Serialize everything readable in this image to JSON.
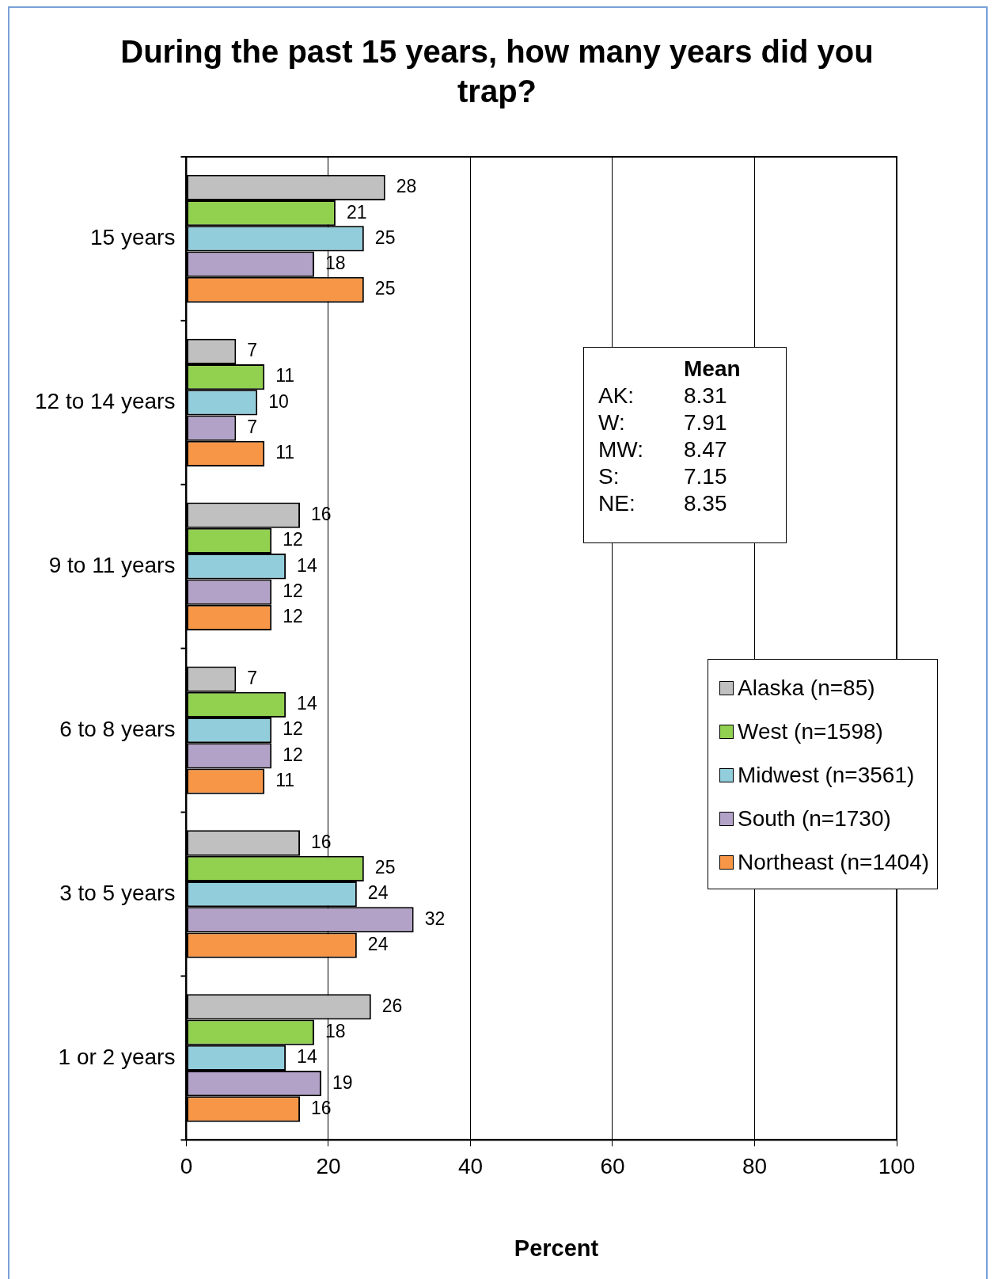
{
  "chart_data": {
    "type": "bar",
    "orientation": "horizontal",
    "title": "During the past 15 years, how many years did you trap?",
    "xlabel": "Percent",
    "categories": [
      "15 years",
      "12 to 14 years",
      "9 to 11 years",
      "6 to 8 years",
      "3 to 5 years",
      "1 or 2 years"
    ],
    "series": [
      {
        "name": "Alaska (n=85)",
        "color": "#c0c0c0",
        "values": [
          28,
          7,
          16,
          7,
          16,
          26
        ]
      },
      {
        "name": "West (n=1598)",
        "color": "#92d050",
        "values": [
          21,
          11,
          12,
          14,
          25,
          18
        ]
      },
      {
        "name": "Midwest (n=3561)",
        "color": "#92cddc",
        "values": [
          25,
          10,
          14,
          12,
          24,
          14
        ]
      },
      {
        "name": "South (n=1730)",
        "color": "#b3a2c7",
        "values": [
          18,
          7,
          12,
          12,
          32,
          19
        ]
      },
      {
        "name": "Northeast (n=1404)",
        "color": "#f79646",
        "values": [
          25,
          11,
          12,
          11,
          24,
          16
        ]
      }
    ],
    "xlim": [
      0,
      100
    ],
    "xticks": [
      0,
      20,
      40,
      60,
      80,
      100
    ],
    "grid": "x",
    "legend": "right",
    "data_labels": true,
    "annotations": [
      "Mean",
      "AK: 8.31",
      "W: 7.91",
      "MW: 8.47",
      "S: 7.15",
      "NE: 8.35"
    ]
  }
}
